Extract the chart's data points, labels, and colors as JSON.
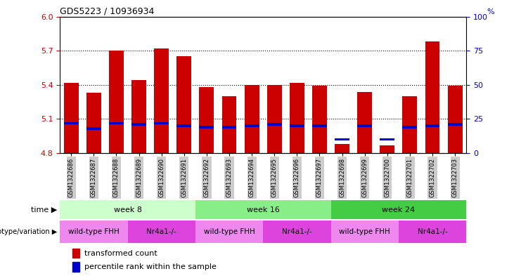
{
  "title": "GDS5223 / 10936934",
  "samples": [
    "GSM1322686",
    "GSM1322687",
    "GSM1322688",
    "GSM1322689",
    "GSM1322690",
    "GSM1322691",
    "GSM1322692",
    "GSM1322693",
    "GSM1322694",
    "GSM1322695",
    "GSM1322696",
    "GSM1322697",
    "GSM1322698",
    "GSM1322699",
    "GSM1322700",
    "GSM1322701",
    "GSM1322702",
    "GSM1322703"
  ],
  "transformed_count": [
    5.42,
    5.33,
    5.7,
    5.44,
    5.72,
    5.65,
    5.38,
    5.3,
    5.4,
    5.4,
    5.42,
    5.39,
    4.88,
    5.34,
    4.87,
    5.3,
    5.78,
    5.39
  ],
  "percentile_rank": [
    22,
    18,
    22,
    21,
    22,
    20,
    19,
    19,
    20,
    21,
    20,
    20,
    10,
    20,
    10,
    19,
    20,
    21
  ],
  "y_min": 4.8,
  "y_max": 6.0,
  "y_ticks_left": [
    4.8,
    5.1,
    5.4,
    5.7,
    6.0
  ],
  "y_ticks_right": [
    0,
    25,
    50,
    75,
    100
  ],
  "bar_color": "#cc0000",
  "marker_color": "#0000cc",
  "ylabel_left_color": "#cc0000",
  "ylabel_right_color": "#0000cc",
  "tick_label_bg": "#cccccc",
  "time_groups": [
    {
      "label": "week 8",
      "start": 0,
      "end": 5,
      "color": "#ccffcc"
    },
    {
      "label": "week 16",
      "start": 6,
      "end": 11,
      "color": "#88ee88"
    },
    {
      "label": "week 24",
      "start": 12,
      "end": 17,
      "color": "#44cc44"
    }
  ],
  "genotype_groups": [
    {
      "label": "wild-type FHH",
      "start": 0,
      "end": 2,
      "color": "#ee88ee"
    },
    {
      "label": "Nr4a1-/-",
      "start": 3,
      "end": 5,
      "color": "#dd44dd"
    },
    {
      "label": "wild-type FHH",
      "start": 6,
      "end": 8,
      "color": "#ee88ee"
    },
    {
      "label": "Nr4a1-/-",
      "start": 9,
      "end": 11,
      "color": "#dd44dd"
    },
    {
      "label": "wild-type FHH",
      "start": 12,
      "end": 14,
      "color": "#ee88ee"
    },
    {
      "label": "Nr4a1-/-",
      "start": 15,
      "end": 17,
      "color": "#dd44dd"
    }
  ]
}
